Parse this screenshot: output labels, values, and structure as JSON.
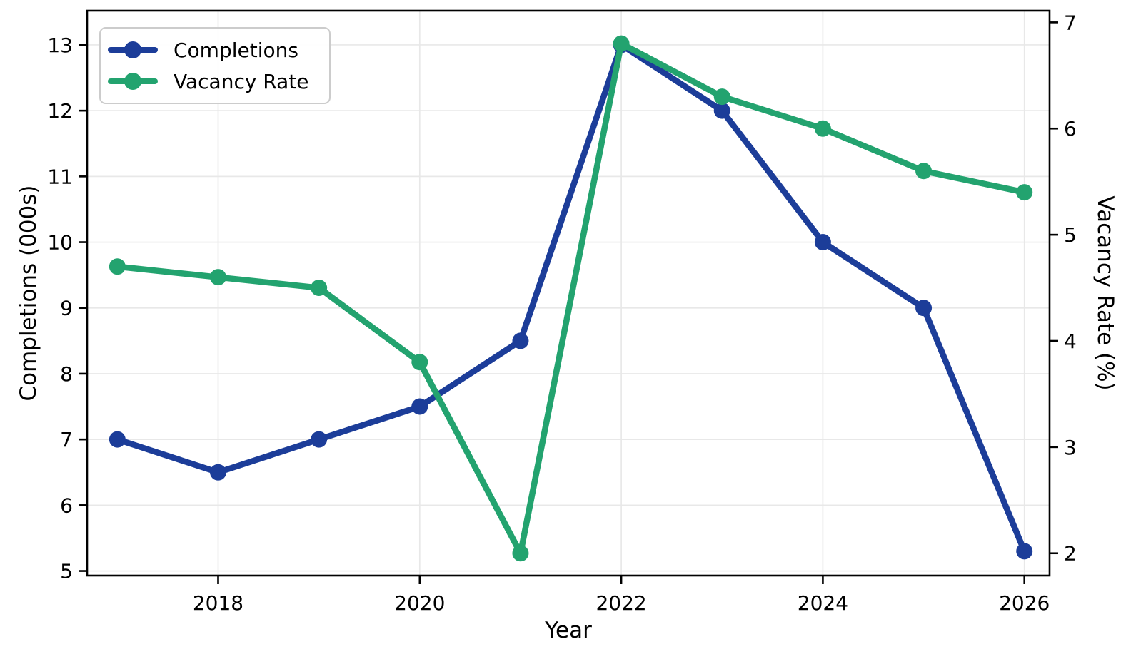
{
  "chart_data": {
    "type": "line",
    "subtype": "dual-axis-line",
    "title": "",
    "xlabel": "Year",
    "ylabel_left": "Completions (000s)",
    "ylabel_right": "Vacancy Rate (%)",
    "x": [
      2017,
      2018,
      2019,
      2020,
      2021,
      2022,
      2023,
      2024,
      2025,
      2026
    ],
    "series": [
      {
        "name": "Completions",
        "axis": "left",
        "color": "#1c3d99",
        "values": [
          7.0,
          6.5,
          7.0,
          7.5,
          8.5,
          13.0,
          12.0,
          10.0,
          9.0,
          5.3
        ]
      },
      {
        "name": "Vacancy Rate",
        "axis": "right",
        "color": "#23a36f",
        "values": [
          4.7,
          4.6,
          4.5,
          3.8,
          2.0,
          6.8,
          6.3,
          6.0,
          5.6,
          5.4
        ]
      }
    ],
    "x_axis": {
      "ticks": [
        2018,
        2020,
        2022,
        2024,
        2026
      ],
      "range": [
        2016.7,
        2026.25
      ]
    },
    "left_axis": {
      "ticks": [
        5,
        6,
        7,
        8,
        9,
        10,
        11,
        12,
        13
      ],
      "range": [
        4.93,
        13.52
      ]
    },
    "right_axis": {
      "ticks": [
        2,
        3,
        4,
        5,
        6,
        7
      ],
      "range": [
        1.79,
        7.11
      ]
    },
    "grid": true,
    "legend_position": "upper-left"
  },
  "legend": {
    "items": [
      {
        "label": "Completions",
        "color": "#1c3d99"
      },
      {
        "label": "Vacancy Rate",
        "color": "#23a36f"
      }
    ]
  },
  "style": {
    "grid_color": "#e8e8e8",
    "spine_color": "#000000",
    "background": "#ffffff",
    "line_width": 8.5,
    "marker_radius": 11.5
  }
}
